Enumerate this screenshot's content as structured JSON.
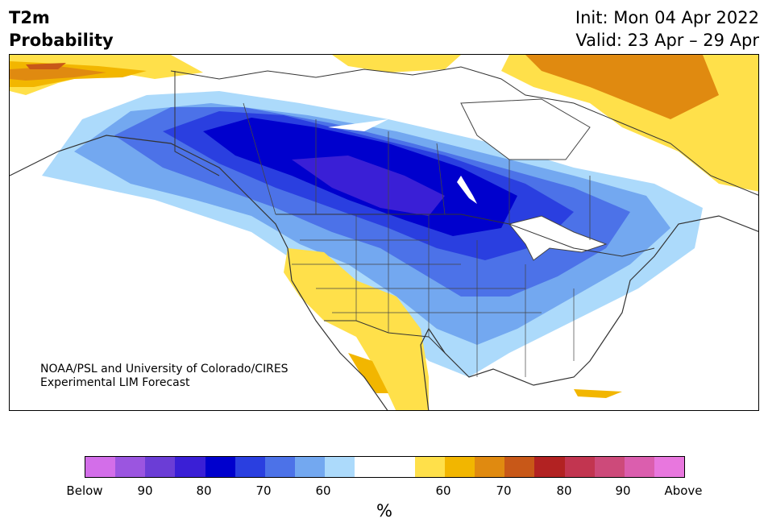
{
  "header": {
    "title_line1": "T2m",
    "title_line2": "Probability",
    "init": "Init: Mon 04 Apr 2022",
    "valid": "Valid: 23 Apr – 29 Apr"
  },
  "map": {
    "credit_line1": "NOAA/PSL and University of Colorado/CIRES",
    "credit_line2": "Experimental LIM Forecast"
  },
  "colorbar": {
    "colors": [
      "#d36ee9",
      "#9b55e0",
      "#6b3dd6",
      "#3a1fd6",
      "#0000cd",
      "#2a3fe0",
      "#4c72e8",
      "#73a8f0",
      "#acdafb",
      "#ffffff",
      "#ffffff",
      "#ffe04a",
      "#f2b600",
      "#e08a10",
      "#c85818",
      "#b22222",
      "#c23550",
      "#cd4a7a",
      "#db5eae",
      "#e877de"
    ],
    "tick_labels": [
      "Below",
      "90",
      "80",
      "70",
      "60",
      "60",
      "70",
      "80",
      "90",
      "Above"
    ],
    "unit": "%"
  }
}
